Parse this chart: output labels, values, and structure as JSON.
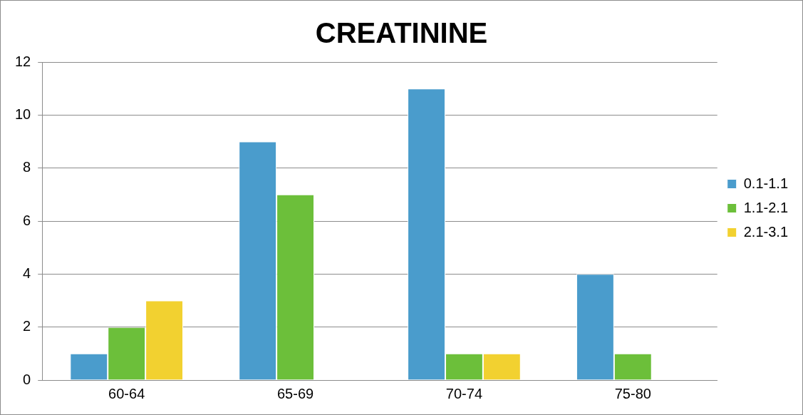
{
  "chart_data": {
    "type": "bar",
    "title": "CREATININE",
    "categories": [
      "60-64",
      "65-69",
      "70-74",
      "75-80"
    ],
    "series": [
      {
        "name": "0.1-1.1",
        "color": "#4a9ccc",
        "values": [
          1,
          9,
          11,
          4
        ]
      },
      {
        "name": "1.1-2.1",
        "color": "#6cbf3a",
        "values": [
          2,
          7,
          1,
          1
        ]
      },
      {
        "name": "2.1-3.1",
        "color": "#f2d130",
        "values": [
          3,
          0,
          1,
          0
        ]
      }
    ],
    "ylim": [
      0,
      12
    ],
    "yticks": [
      0,
      2,
      4,
      6,
      8,
      10,
      12
    ],
    "grid": "y",
    "legend": "right"
  }
}
